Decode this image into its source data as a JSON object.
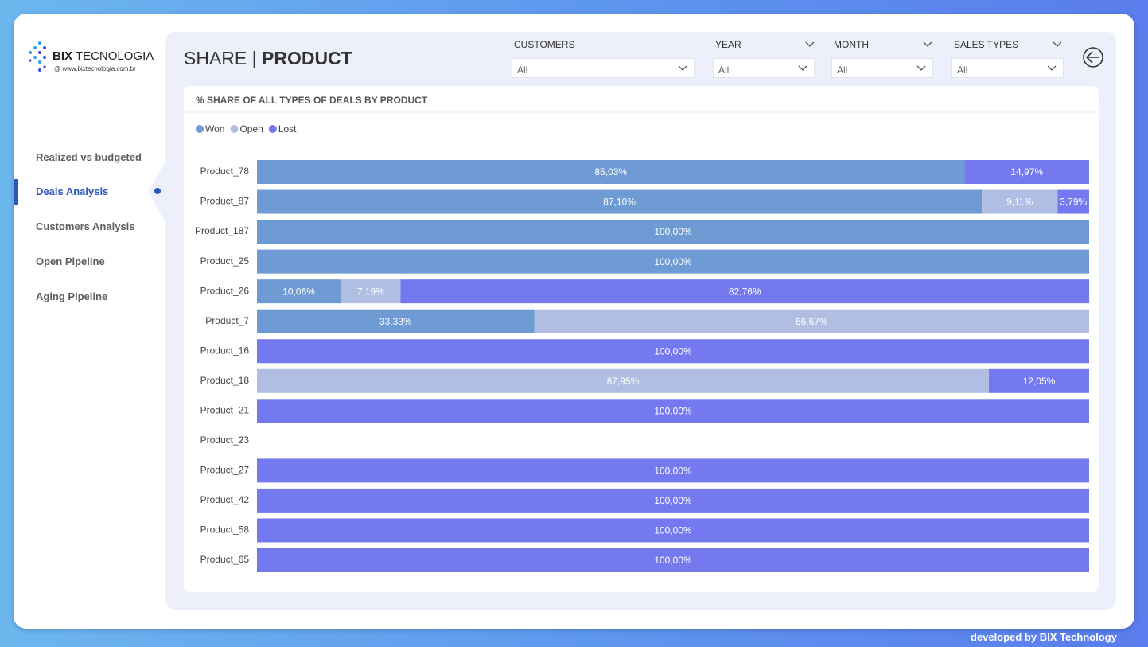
{
  "logo": {
    "brand_bold": "BIX",
    "brand_light": "TECNOLOGIA",
    "url": "@ www.bixtecnologia.com.br"
  },
  "nav": {
    "items": [
      "Realized vs budgeted",
      "Deals Analysis",
      "Customers Analysis",
      "Open Pipeline",
      "Aging Pipeline"
    ]
  },
  "header": {
    "title_light": "SHARE |",
    "title_bold": "PRODUCT"
  },
  "filters": [
    {
      "label": "CUSTOMERS",
      "value": "All"
    },
    {
      "label": "YEAR",
      "value": "All"
    },
    {
      "label": "MONTH",
      "value": "All"
    },
    {
      "label": "SALES TYPES",
      "value": "All"
    }
  ],
  "footer": "developed by BIX Technology",
  "chart_data": {
    "type": "stacked-bar",
    "title": "% SHARE OF ALL TYPES OF DEALS BY PRODUCT",
    "categories": [
      "Product_78",
      "Product_87",
      "Product_187",
      "Product_25",
      "Product_26",
      "Product_7",
      "Product_16",
      "Product_18",
      "Product_21",
      "Product_23",
      "Product_27",
      "Product_42",
      "Product_58",
      "Product_65"
    ],
    "xlim": [
      0,
      100
    ],
    "series": [
      {
        "name": "Won",
        "color": "#6f9bd4",
        "values": [
          85.03,
          87.1,
          100,
          100,
          10.06,
          33.33,
          null,
          null,
          null,
          null,
          null,
          null,
          null,
          null
        ],
        "value_labels": [
          "85,03%",
          "87,10%",
          "100,00%",
          "100,00%",
          "10,06%",
          "33,33%",
          null,
          null,
          null,
          null,
          null,
          null,
          null,
          null
        ]
      },
      {
        "name": "Open",
        "color": "#b1bee3",
        "values": [
          null,
          9.11,
          null,
          null,
          7.19,
          66.67,
          null,
          87.95,
          null,
          null,
          null,
          null,
          null,
          null
        ],
        "value_labels": [
          null,
          "9,11%",
          null,
          null,
          "7,19%",
          "66,67%",
          null,
          "87,95%",
          null,
          null,
          null,
          null,
          null,
          null
        ]
      },
      {
        "name": "Lost",
        "color": "#7479ef",
        "values": [
          14.97,
          3.79,
          null,
          null,
          82.76,
          null,
          100,
          12.05,
          100,
          null,
          100,
          100,
          100,
          100
        ],
        "value_labels": [
          "14,97%",
          "3,79%",
          null,
          null,
          "82,76%",
          null,
          "100,00%",
          "12,05%",
          "100,00%",
          null,
          "100,00%",
          "100,00%",
          "100,00%",
          "100,00%"
        ]
      }
    ],
    "legend": "top-left"
  }
}
